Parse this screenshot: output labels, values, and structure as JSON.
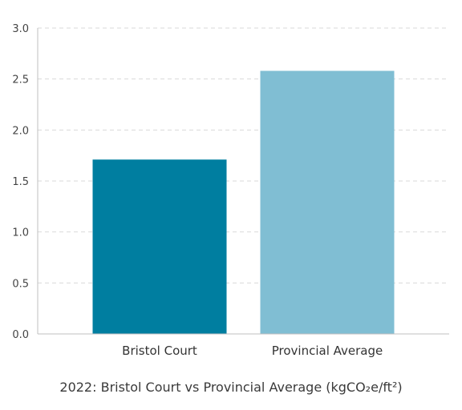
{
  "chart_data": {
    "type": "bar",
    "categories": [
      "Bristol Court",
      "Provincial Average"
    ],
    "values": [
      1.71,
      2.58
    ],
    "colors": [
      "#007ea0",
      "#80bed3"
    ],
    "title": "",
    "caption": "2022: Bristol Court vs Provincial Average (kgCO₂e/ft²)",
    "xlabel": "",
    "ylabel": "",
    "ylim": [
      0,
      3.0
    ],
    "yticks": [
      "0.0",
      "0.5",
      "1.0",
      "1.5",
      "2.0",
      "2.5",
      "3.0"
    ],
    "grid": true,
    "legend": "none"
  }
}
